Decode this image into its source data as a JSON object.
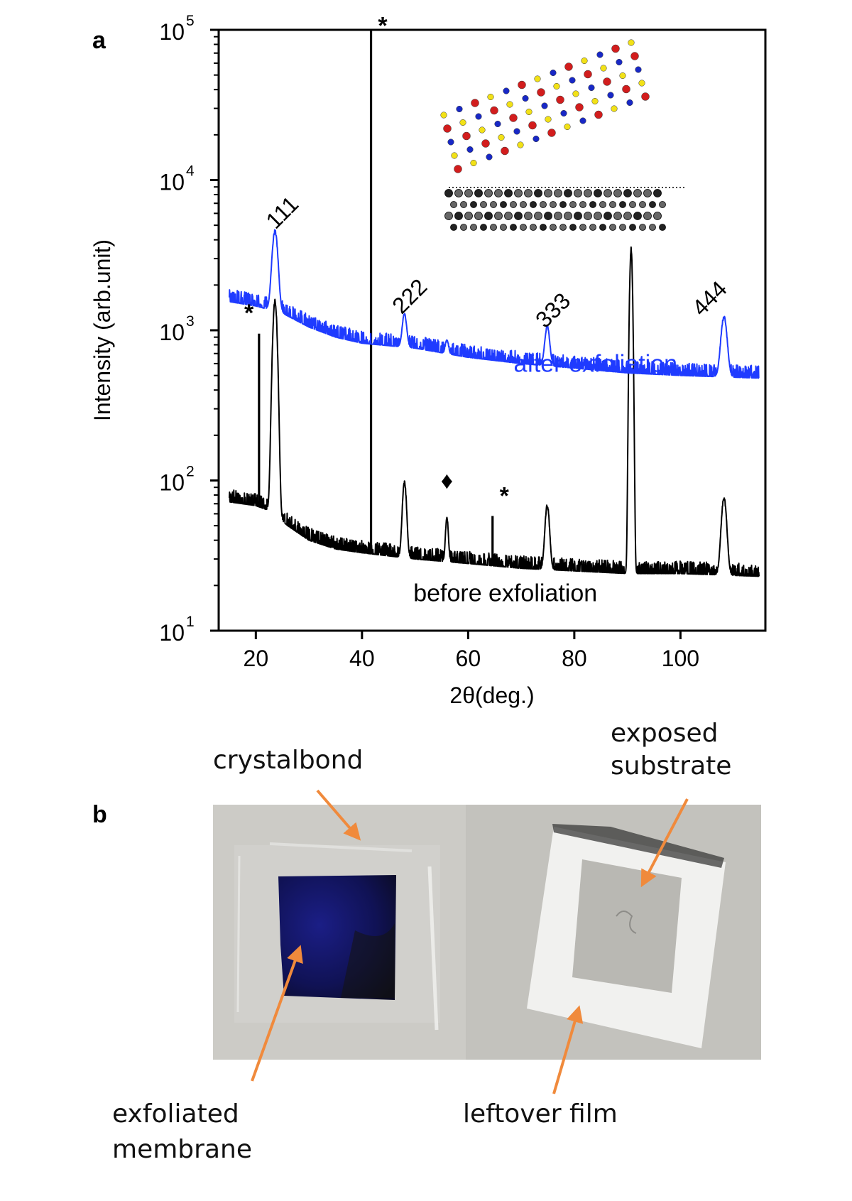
{
  "panel_a_label": "a",
  "panel_b_label": "b",
  "chart_data": {
    "type": "line",
    "xlabel": "2θ(deg.)",
    "ylabel": "Intensity (arb.unit)",
    "xlim": [
      13,
      116
    ],
    "ylim_log10": [
      1,
      5
    ],
    "yscale": "log",
    "x_ticks": [
      "20",
      "40",
      "60",
      "80",
      "100"
    ],
    "x_tick_values": [
      20,
      40,
      60,
      80,
      100
    ],
    "y_ticks": [
      {
        "base": "10",
        "exp": "1",
        "value": 10
      },
      {
        "base": "10",
        "exp": "2",
        "value": 100
      },
      {
        "base": "10",
        "exp": "3",
        "value": 1000
      },
      {
        "base": "10",
        "exp": "4",
        "value": 10000
      },
      {
        "base": "10",
        "exp": "5",
        "value": 100000
      }
    ],
    "series": [
      {
        "name": "after exfoliation",
        "color": "#1f3bff",
        "baseline": [
          [
            15,
            1550
          ],
          [
            20,
            1450
          ],
          [
            25,
            1300
          ],
          [
            30,
            1050
          ],
          [
            35,
            900
          ],
          [
            40,
            820
          ],
          [
            50,
            760
          ],
          [
            60,
            660
          ],
          [
            70,
            600
          ],
          [
            80,
            560
          ],
          [
            90,
            520
          ],
          [
            100,
            500
          ],
          [
            115,
            480
          ]
        ],
        "peaks": [
          {
            "x": 23.6,
            "height": 4700,
            "width": 0.7
          },
          {
            "x": 48.0,
            "height": 1300,
            "width": 0.55
          },
          {
            "x": 56.0,
            "height": 870,
            "width": 0.4
          },
          {
            "x": 74.9,
            "height": 1080,
            "width": 0.6
          },
          {
            "x": 108.2,
            "height": 1250,
            "width": 0.75
          }
        ]
      },
      {
        "name": "before exfoliation",
        "color": "#000000",
        "baseline": [
          [
            15,
            72
          ],
          [
            20,
            68
          ],
          [
            23,
            62
          ],
          [
            26,
            50
          ],
          [
            30,
            40
          ],
          [
            35,
            35
          ],
          [
            40,
            33
          ],
          [
            50,
            30
          ],
          [
            60,
            28
          ],
          [
            70,
            26
          ],
          [
            80,
            25
          ],
          [
            90,
            24
          ],
          [
            100,
            24
          ],
          [
            115,
            23
          ]
        ],
        "peaks": [
          {
            "x": 23.6,
            "height": 1650,
            "width": 0.55
          },
          {
            "x": 48.0,
            "height": 100,
            "width": 0.5
          },
          {
            "x": 56.0,
            "height": 58,
            "width": 0.35
          },
          {
            "x": 74.9,
            "height": 70,
            "width": 0.55
          },
          {
            "x": 90.7,
            "height": 3600,
            "width": 0.35
          },
          {
            "x": 108.2,
            "height": 78,
            "width": 0.65
          }
        ],
        "spikes": [
          {
            "x": 20.6,
            "height": 950
          },
          {
            "x": 41.7,
            "height": 100000
          },
          {
            "x": 64.6,
            "height": 58
          }
        ]
      }
    ],
    "peak_labels": [
      {
        "text": "111",
        "x": 26,
        "y": 5600
      },
      {
        "text": "222",
        "x": 50,
        "y": 1550
      },
      {
        "text": "333",
        "x": 77,
        "y": 1250
      },
      {
        "text": "444",
        "x": 106.5,
        "y": 1500
      }
    ],
    "markers": [
      {
        "text": "*",
        "x": 18.7,
        "y": 1150
      },
      {
        "text": "*",
        "x": 43.9,
        "y": 94000
      },
      {
        "text": "*",
        "x": 66.8,
        "y": 70
      },
      {
        "text": "♦",
        "x": 56.0,
        "y": 88
      }
    ],
    "series_labels": [
      {
        "text": "after exfoliation",
        "x": 84,
        "y": 530,
        "color": "#1f3bff"
      },
      {
        "text": "before exfoliation",
        "x": 67,
        "y": 15.7,
        "color": "#000000"
      }
    ]
  },
  "photo_labels": {
    "crystalbond": "crystalbond",
    "exposed_line1": "exposed",
    "exposed_line2": "substrate",
    "exfoliated_line1": "exfoliated",
    "exfoliated_line2": "membrane",
    "leftover": "leftover film"
  },
  "colors": {
    "arrow": "#f08a3c",
    "after_series": "#1f3bff"
  }
}
